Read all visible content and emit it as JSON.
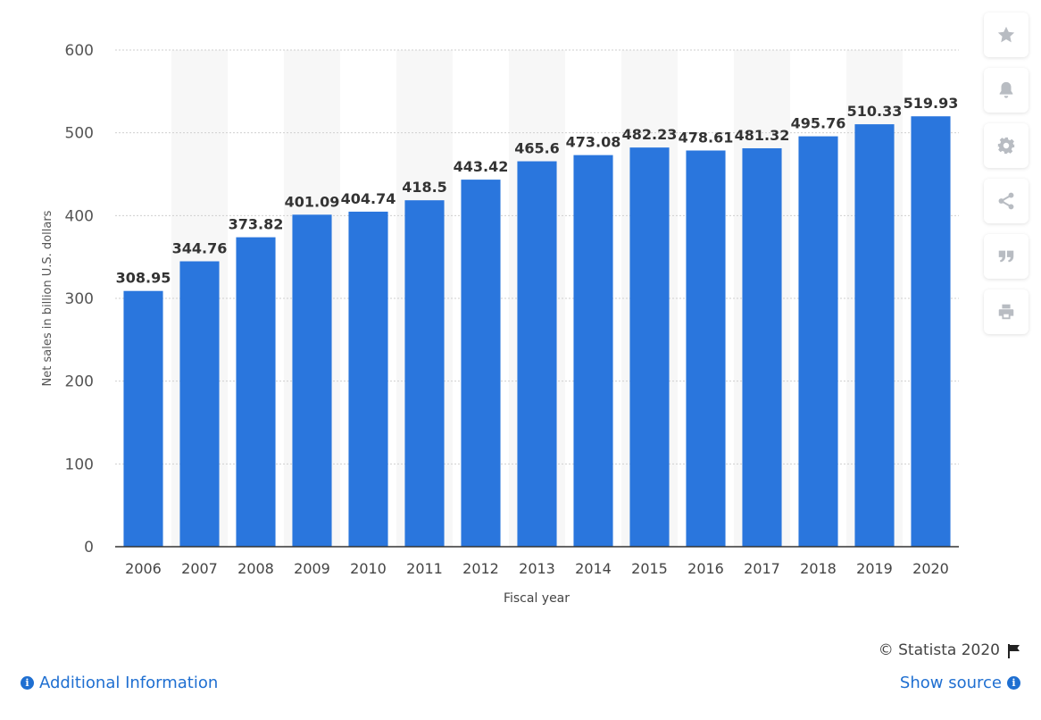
{
  "chart_data": {
    "type": "bar",
    "categories": [
      "2006",
      "2007",
      "2008",
      "2009",
      "2010",
      "2011",
      "2012",
      "2013",
      "2014",
      "2015",
      "2016",
      "2017",
      "2018",
      "2019",
      "2020"
    ],
    "values": [
      308.95,
      344.76,
      373.82,
      401.09,
      404.74,
      418.5,
      443.42,
      465.6,
      473.08,
      482.23,
      478.61,
      481.32,
      495.76,
      510.33,
      519.93
    ],
    "value_labels": [
      "308.95",
      "344.76",
      "373.82",
      "401.09",
      "404.74",
      "418.5",
      "443.42",
      "465.6",
      "473.08",
      "482.23",
      "478.61",
      "481.32",
      "495.76",
      "510.33",
      "519.93"
    ],
    "xlabel": "Fiscal year",
    "ylabel": "Net sales in billion U.S. dollars",
    "ylim": [
      0,
      600
    ],
    "yticks": [
      0,
      100,
      200,
      300,
      400,
      500,
      600
    ],
    "grid": true,
    "bar_color": "#2a76dd"
  },
  "toolbar": {
    "buttons": [
      {
        "icon": "star-icon"
      },
      {
        "icon": "bell-icon"
      },
      {
        "icon": "gear-icon"
      },
      {
        "icon": "share-icon"
      },
      {
        "icon": "quote-icon"
      },
      {
        "icon": "print-icon"
      }
    ]
  },
  "footer": {
    "credit": "© Statista 2020",
    "additional_info": "Additional Information",
    "show_source": "Show source"
  },
  "colors": {
    "accent": "#1f6fd1",
    "icon_gray": "#b8bcc2"
  }
}
